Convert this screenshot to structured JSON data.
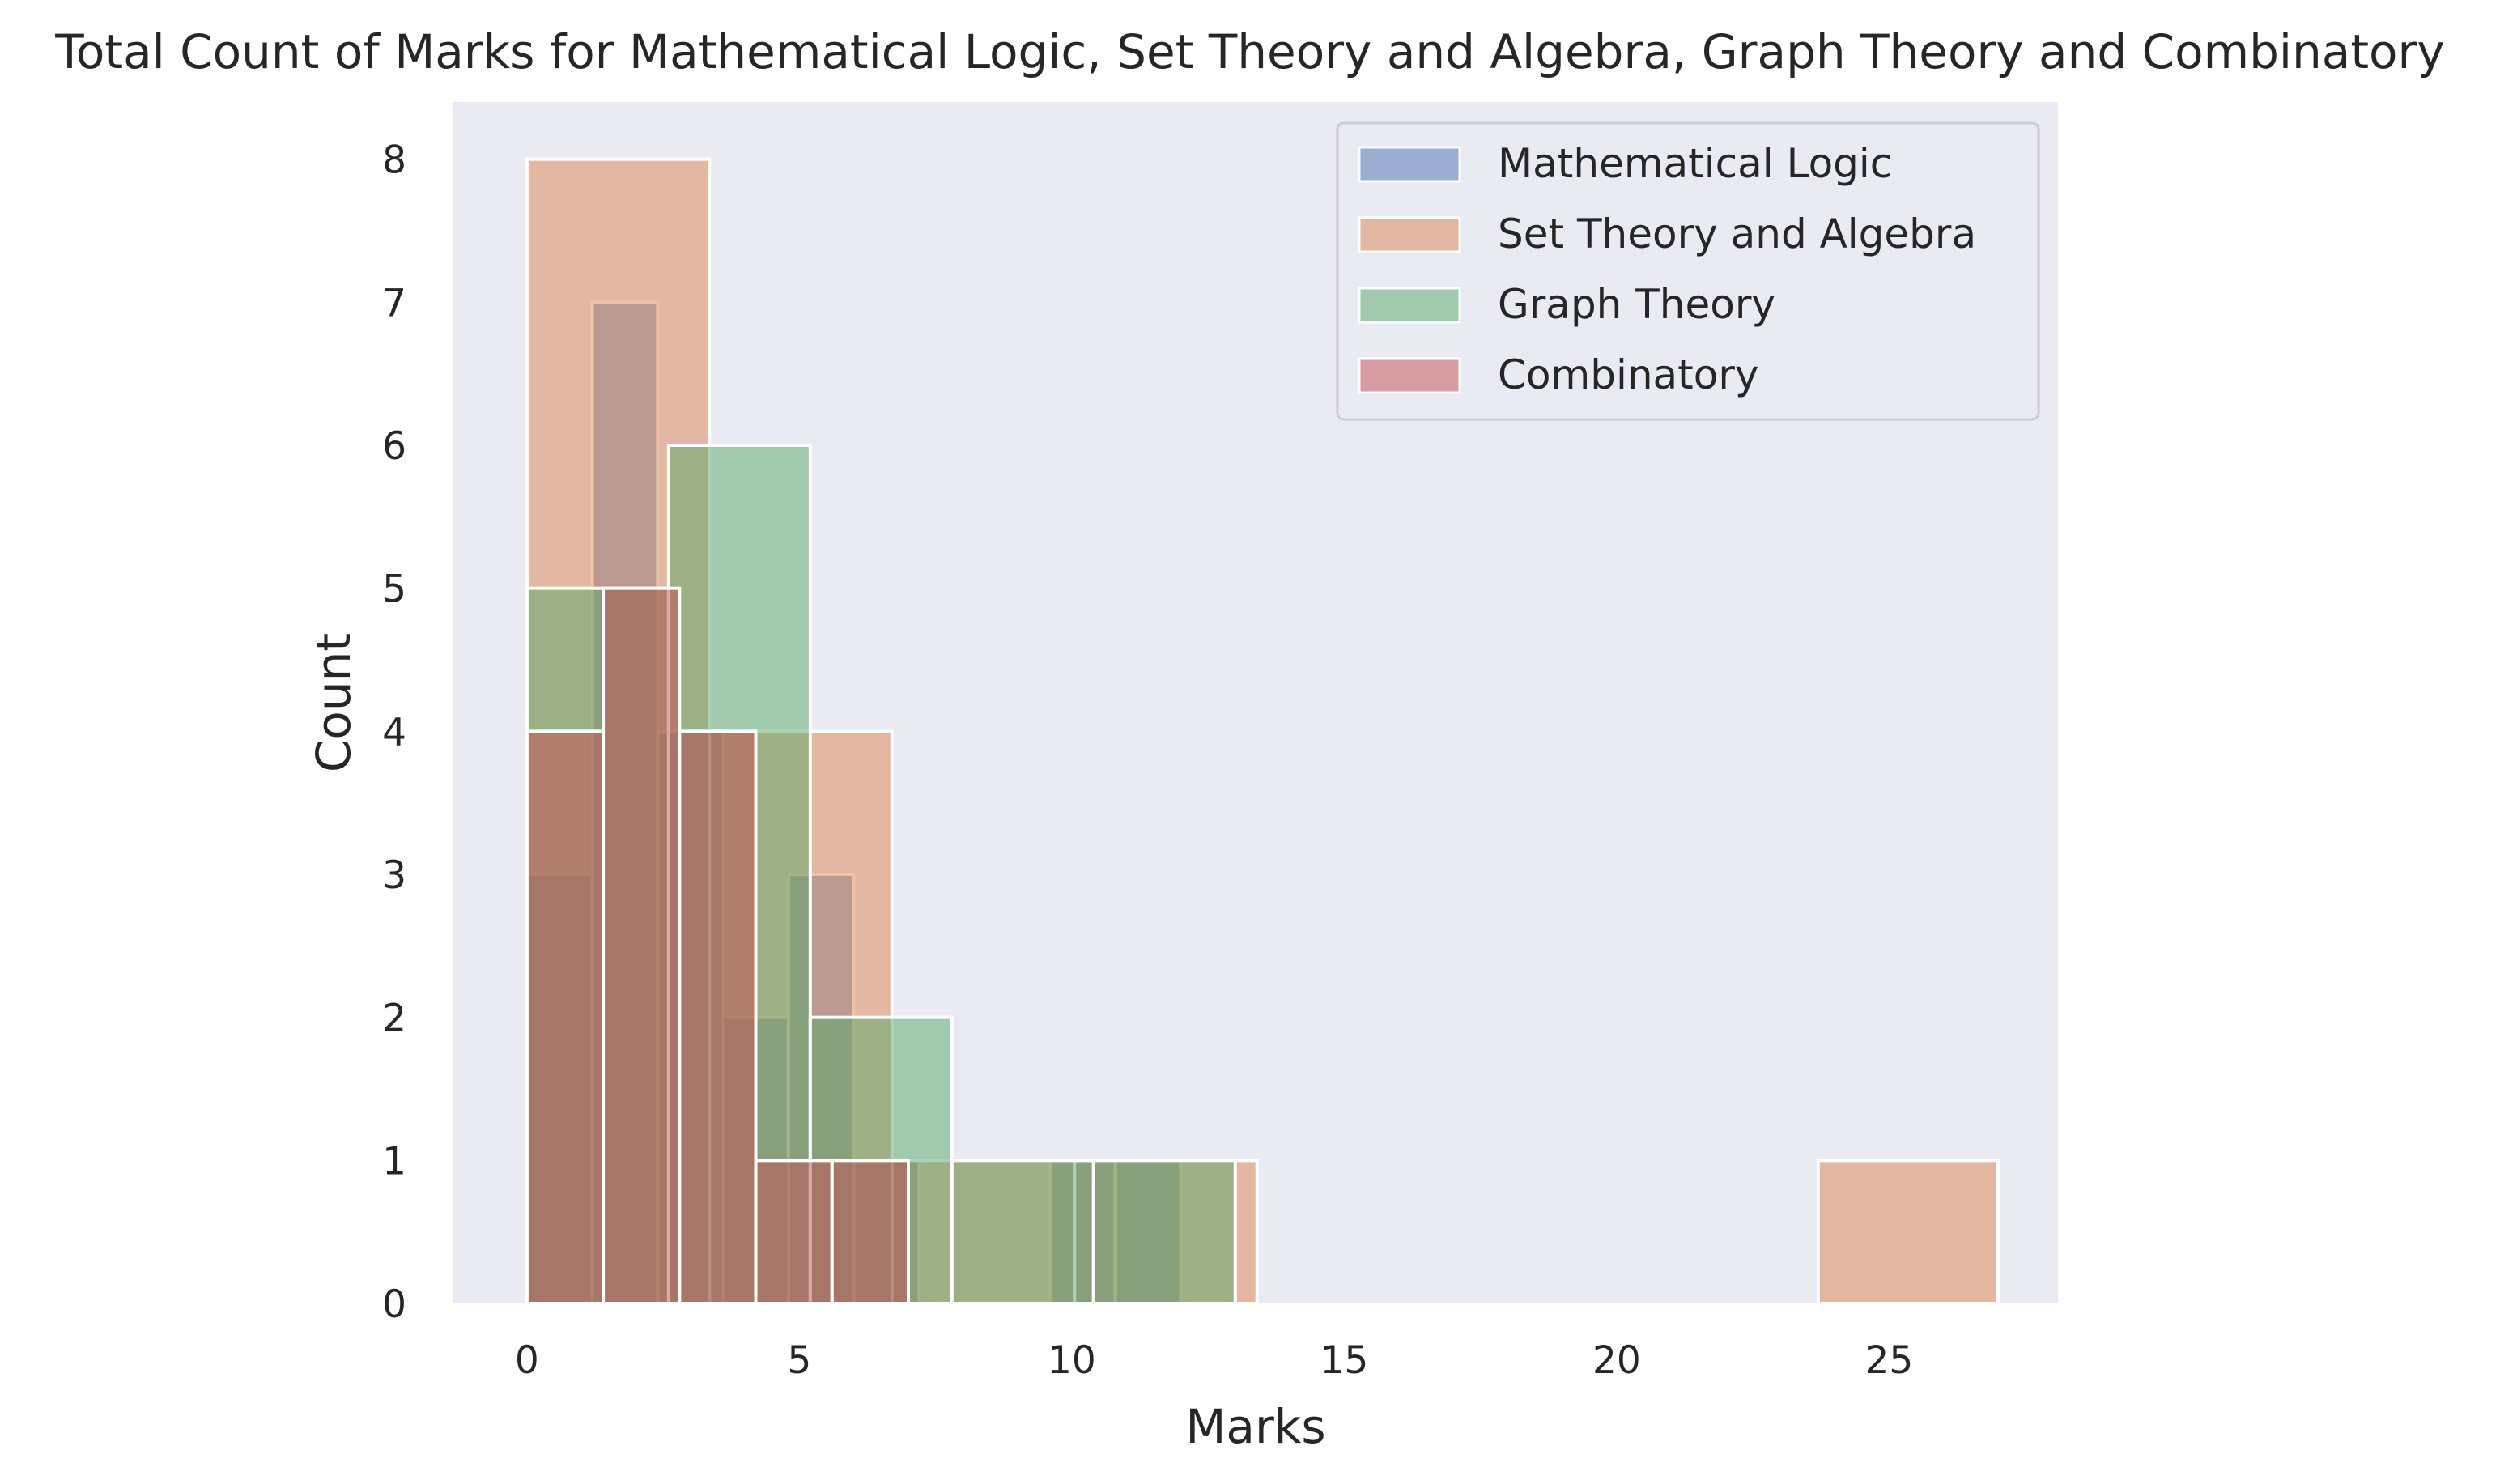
{
  "chart_data": {
    "type": "bar",
    "title": "Total Count of Marks for Mathematical Logic, Set Theory and Algebra, Graph Theory and Combinatory",
    "xlabel": "Marks",
    "ylabel": "Count",
    "xlim": [
      -1.35,
      28.1
    ],
    "ylim": [
      0,
      8.4
    ],
    "xticks": [
      0,
      5,
      10,
      15,
      20,
      25
    ],
    "yticks": [
      0,
      1,
      2,
      3,
      4,
      5,
      6,
      7,
      8
    ],
    "grid": false,
    "legend_position": "top-right",
    "background_color": "#eaeaf2",
    "bar_opacity": 0.5,
    "series": [
      {
        "name": "Mathematical Logic",
        "color": "#4c72b0",
        "bins": [
          {
            "x0": 0.0,
            "x1": 1.2,
            "count": 3
          },
          {
            "x0": 1.2,
            "x1": 2.4,
            "count": 7
          },
          {
            "x0": 2.4,
            "x1": 3.6,
            "count": 4
          },
          {
            "x0": 3.6,
            "x1": 4.8,
            "count": 2
          },
          {
            "x0": 4.8,
            "x1": 6.0,
            "count": 3
          },
          {
            "x0": 6.0,
            "x1": 7.2,
            "count": 1
          },
          {
            "x0": 9.6,
            "x1": 10.8,
            "count": 1
          },
          {
            "x0": 10.8,
            "x1": 12.0,
            "count": 1
          }
        ]
      },
      {
        "name": "Set Theory and Algebra",
        "color": "#dd8452",
        "bins": [
          {
            "x0": 0.0,
            "x1": 3.35,
            "count": 8
          },
          {
            "x0": 3.35,
            "x1": 6.7,
            "count": 4
          },
          {
            "x0": 6.7,
            "x1": 10.05,
            "count": 1
          },
          {
            "x0": 10.05,
            "x1": 13.4,
            "count": 1
          },
          {
            "x0": 23.7,
            "x1": 27.0,
            "count": 1
          }
        ]
      },
      {
        "name": "Graph Theory",
        "color": "#55a868",
        "bins": [
          {
            "x0": 0.0,
            "x1": 2.6,
            "count": 5
          },
          {
            "x0": 2.6,
            "x1": 5.2,
            "count": 6
          },
          {
            "x0": 5.2,
            "x1": 7.8,
            "count": 2
          },
          {
            "x0": 7.8,
            "x1": 10.4,
            "count": 1
          },
          {
            "x0": 10.4,
            "x1": 13.0,
            "count": 1
          }
        ]
      },
      {
        "name": "Combinatory",
        "color": "#c44e52",
        "bins": [
          {
            "x0": 0.0,
            "x1": 1.4,
            "count": 4
          },
          {
            "x0": 1.4,
            "x1": 2.8,
            "count": 5
          },
          {
            "x0": 2.8,
            "x1": 4.2,
            "count": 4
          },
          {
            "x0": 4.2,
            "x1": 5.6,
            "count": 1
          },
          {
            "x0": 5.6,
            "x1": 7.0,
            "count": 1
          }
        ]
      }
    ]
  }
}
